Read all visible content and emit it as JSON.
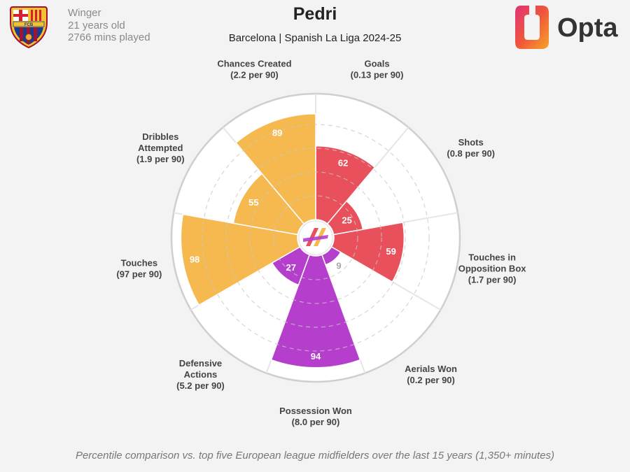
{
  "player": {
    "name": "Pedri",
    "position": "Winger",
    "age": "21 years old",
    "minutes": "2766 mins played",
    "competition": "Barcelona | Spanish La Liga 2024-25"
  },
  "branding": {
    "logo_text": "Opta",
    "crest_letters": "FCB"
  },
  "footer": "Percentile comparison vs. top five European league midfielders over the last 15 years (1,350+ minutes)",
  "colors": {
    "attacking": "#e8505b",
    "possession": "#b53fcc",
    "passing": "#f6b94f",
    "empty_value": "#a8a8a8"
  },
  "chart_data": {
    "type": "polar-bar",
    "rmax": 100,
    "rings": [
      20,
      40,
      60,
      80,
      100
    ],
    "categories": [
      {
        "line1": "Goals",
        "line2": "(0.13 per 90)",
        "value": 62,
        "group": "attacking"
      },
      {
        "line1": "Shots",
        "line2": "(0.8 per 90)",
        "value": 25,
        "group": "attacking"
      },
      {
        "line1": "Touches in",
        "line1b": "Opposition Box",
        "line2": "(1.7 per 90)",
        "value": 59,
        "group": "attacking"
      },
      {
        "line1": "Aerials Won",
        "line2": "(0.2 per 90)",
        "value": 9,
        "group": "possession"
      },
      {
        "line1": "Possession Won",
        "line2": "(8.0 per 90)",
        "value": 94,
        "group": "possession"
      },
      {
        "line1": "Defensive",
        "line1b": "Actions",
        "line2": "(5.2 per 90)",
        "value": 27,
        "group": "possession"
      },
      {
        "line1": "Touches",
        "line2": "(97 per 90)",
        "value": 98,
        "group": "passing"
      },
      {
        "line1": "Dribbles",
        "line1b": "Attempted",
        "line2": "(1.9 per 90)",
        "value": 55,
        "group": "passing"
      },
      {
        "line1": "Chances Created",
        "line2": "(2.2 per 90)",
        "value": 89,
        "group": "passing"
      }
    ]
  }
}
